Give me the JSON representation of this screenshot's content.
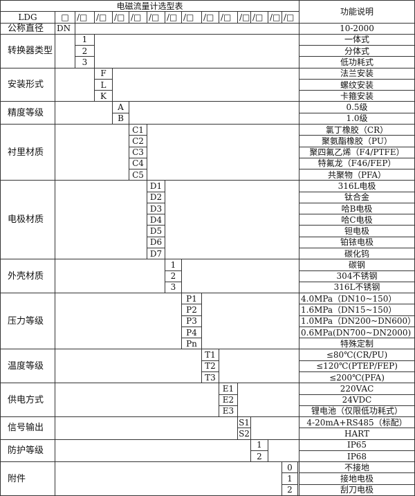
{
  "title": "电磁流量计选型表",
  "function_header": "功能说明",
  "model_row": {
    "model": "LDG",
    "first_box": "□",
    "boxes": [
      "/□",
      "/□",
      "/□",
      "/□",
      "/□",
      "/□",
      "/□",
      "/□",
      "/□",
      "/□",
      "/□",
      "/□",
      "/□"
    ]
  },
  "nominal_diameter": {
    "label": "公称直径",
    "code": "DN",
    "description": "10-2000"
  },
  "groups": [
    {
      "label": "转换器类型",
      "codes": [
        "1",
        "2",
        "3"
      ],
      "descriptions": [
        "一体式",
        "分体式",
        "低功耗式"
      ]
    },
    {
      "label": "安装形式",
      "codes": [
        "F",
        "L",
        "K"
      ],
      "descriptions": [
        "法兰安装",
        "螺纹安装",
        "卡箍安装"
      ]
    },
    {
      "label": "精度等级",
      "codes": [
        "A",
        "B"
      ],
      "descriptions": [
        "0.5级",
        "1.0级"
      ]
    },
    {
      "label": "衬里材质",
      "codes": [
        "C1",
        "C2",
        "C3",
        "C4",
        "C5"
      ],
      "descriptions": [
        "氯丁橡胶（CR）",
        "聚氨酯橡胶（PU）",
        "聚四氟乙烯（F4/PTFE）",
        "特氟龙（F46/FEP）",
        "共聚物（PFA）"
      ]
    },
    {
      "label": "电极材质",
      "codes": [
        "D1",
        "D2",
        "D3",
        "D4",
        "D5",
        "D6",
        "D7"
      ],
      "descriptions": [
        "316L电极",
        "钛合金",
        "哈B电极",
        "哈C电极",
        "钽电极",
        "铂铱电极",
        "碳化钨"
      ]
    },
    {
      "label": "外壳材质",
      "codes": [
        "1",
        "2",
        "3"
      ],
      "descriptions": [
        "碳钢",
        "304不锈钢",
        "316L不锈钢"
      ]
    },
    {
      "label": "压力等级",
      "codes": [
        "P1",
        "P2",
        "P3",
        "P4",
        "Pn"
      ],
      "descriptions": [
        "4.0MPa（DN10~150）",
        "1.6MPa（DN15~150）",
        "1.0MPa（DN200~DN600）",
        "0.6MPa(DN700~DN2000)",
        "特殊定制"
      ]
    },
    {
      "label": "温度等级",
      "codes": [
        "T1",
        "T2",
        "T3"
      ],
      "descriptions": [
        "≤80℃(CR/PU)",
        "≤120℃(PTEP/FEP)",
        "≤200℃(PFA)"
      ]
    },
    {
      "label": "供电方式",
      "codes": [
        "E1",
        "E2",
        "E3"
      ],
      "descriptions": [
        "220VAC",
        "24VDC",
        "锂电池（仅限低功耗式）"
      ]
    },
    {
      "label": "信号输出",
      "codes": [
        "S1",
        "S2"
      ],
      "descriptions": [
        "4-20mA+RS485（标配）",
        "HART"
      ]
    },
    {
      "label": "防护等级",
      "codes": [
        "1",
        "2"
      ],
      "descriptions": [
        "IP65",
        "IP68"
      ]
    },
    {
      "label": "附件",
      "codes": [
        "0",
        "1",
        "2"
      ],
      "descriptions": [
        "不接地",
        "接地电极",
        "刮刀电极"
      ]
    }
  ]
}
